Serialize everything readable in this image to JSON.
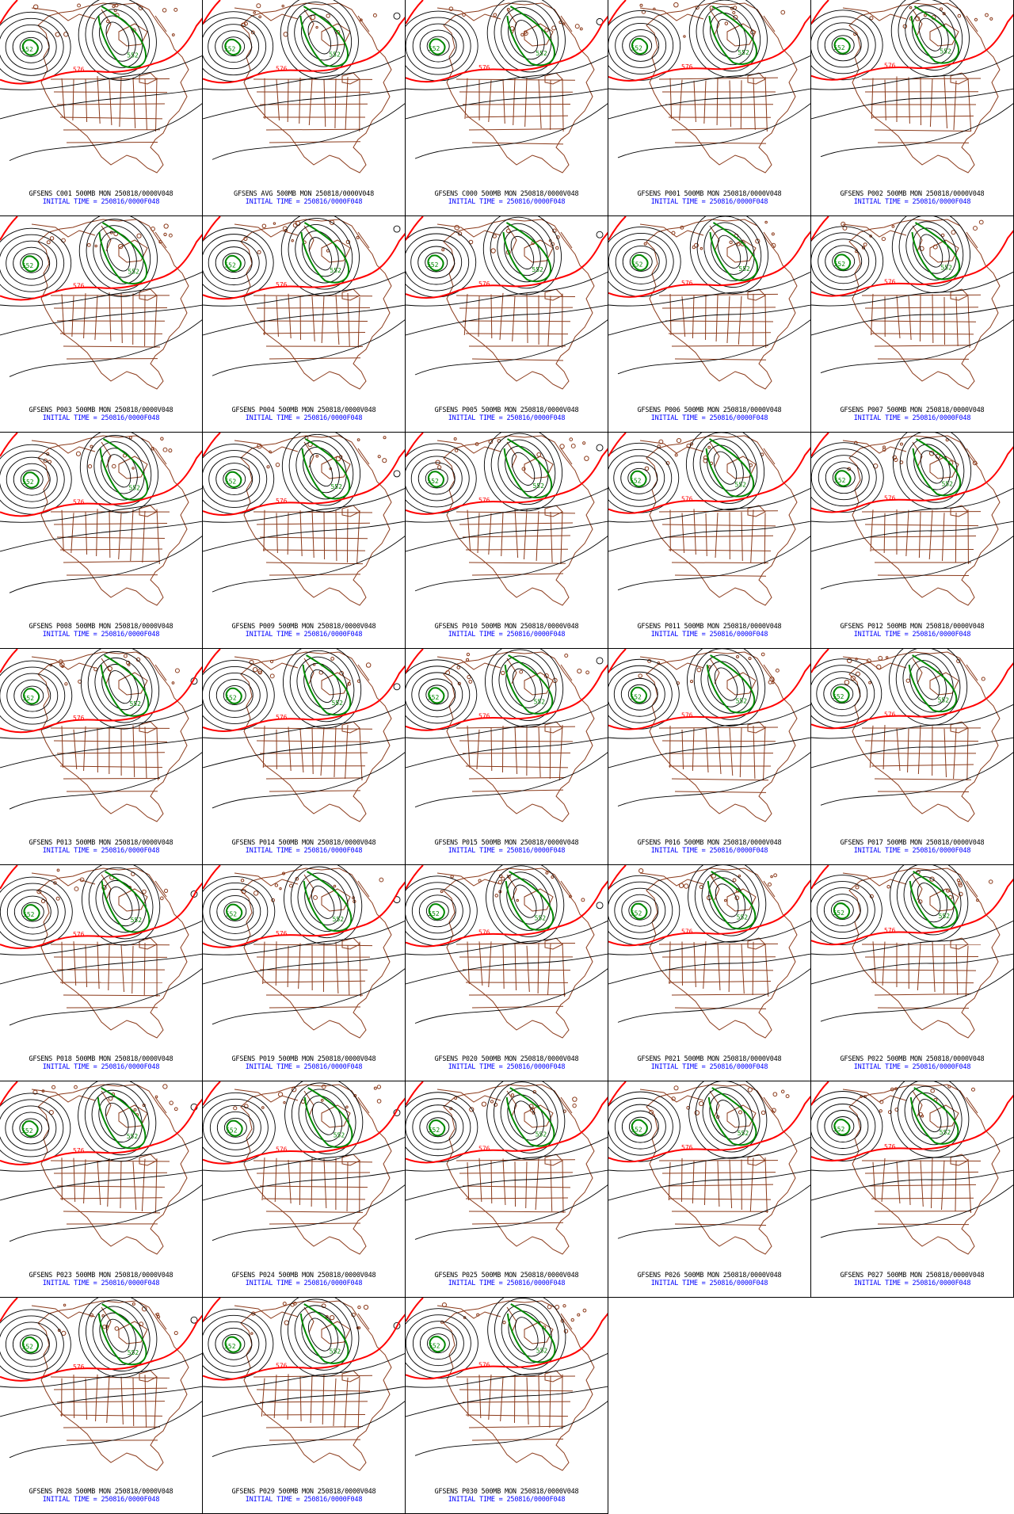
{
  "colors": {
    "contour": "#000000",
    "line_576": "#ff0000",
    "line_552": "#008800",
    "borders": "#8b3a1a",
    "caption_line1": "#000000",
    "caption_line2": "#0000ff"
  },
  "contour_labels": {
    "low_552": "552",
    "line_576": "576"
  },
  "caption_suffix": "500MB MON 250818/0000V048",
  "initial_time": "INITIAL TIME = 250816/0000F048",
  "panels": [
    {
      "member": "GFSENS C001",
      "caption": "GFSENS C001 500MB MON 250818/0000V048",
      "initial": "INITIAL TIME = 250816/0000F048"
    },
    {
      "member": "GFSENS AVG",
      "caption": "GFSENS AVG 500MB MON 250818/0000V048",
      "initial": "INITIAL TIME = 250816/0000F048"
    },
    {
      "member": "GFSENS C000",
      "caption": "GFSENS C000 500MB MON 250818/0000V048",
      "initial": "INITIAL TIME = 250816/0000F048"
    },
    {
      "member": "GFSENS P001",
      "caption": "GFSENS P001 500MB MON 250818/0000V048",
      "initial": "INITIAL TIME = 250816/0000F048"
    },
    {
      "member": "GFSENS P002",
      "caption": "GFSENS P002 500MB MON 250818/0000V048",
      "initial": "INITIAL TIME = 250816/0000F048"
    },
    {
      "member": "GFSENS P003",
      "caption": "GFSENS P003 500MB MON 250818/0000V048",
      "initial": "INITIAL TIME = 250816/0000F048"
    },
    {
      "member": "GFSENS P004",
      "caption": "GFSENS P004 500MB MON 250818/0000V048",
      "initial": "INITIAL TIME = 250816/0000F048"
    },
    {
      "member": "GFSENS P005",
      "caption": "GFSENS P005 500MB MON 250818/0000V048",
      "initial": "INITIAL TIME = 250816/0000F048"
    },
    {
      "member": "GFSENS P006",
      "caption": "GFSENS P006 500MB MON 250818/0000V048",
      "initial": "INITIAL TIME = 250816/0000F048"
    },
    {
      "member": "GFSENS P007",
      "caption": "GFSENS P007 500MB MON 250818/0000V048",
      "initial": "INITIAL TIME = 250816/0000F048"
    },
    {
      "member": "GFSENS P008",
      "caption": "GFSENS P008 500MB MON 250818/0000V048",
      "initial": "INITIAL TIME = 250816/0000F048"
    },
    {
      "member": "GFSENS P009",
      "caption": "GFSENS P009 500MB MON 250818/0000V048",
      "initial": "INITIAL TIME = 250816/0000F048"
    },
    {
      "member": "GFSENS P010",
      "caption": "GFSENS P010 500MB MON 250818/0000V048",
      "initial": "INITIAL TIME = 250816/0000F048"
    },
    {
      "member": "GFSENS P011",
      "caption": "GFSENS P011 500MB MON 250818/0000V048",
      "initial": "INITIAL TIME = 250816/0000F048"
    },
    {
      "member": "GFSENS P012",
      "caption": "GFSENS P012 500MB MON 250818/0000V048",
      "initial": "INITIAL TIME = 250816/0000F048"
    },
    {
      "member": "GFSENS P013",
      "caption": "GFSENS P013 500MB MON 250818/0000V048",
      "initial": "INITIAL TIME = 250816/0000F048"
    },
    {
      "member": "GFSENS P014",
      "caption": "GFSENS P014 500MB MON 250818/0000V048",
      "initial": "INITIAL TIME = 250816/0000F048"
    },
    {
      "member": "GFSENS P015",
      "caption": "GFSENS P015 500MB MON 250818/0000V048",
      "initial": "INITIAL TIME = 250816/0000F048"
    },
    {
      "member": "GFSENS P016",
      "caption": "GFSENS P016 500MB MON 250818/0000V048",
      "initial": "INITIAL TIME = 250816/0000F048"
    },
    {
      "member": "GFSENS P017",
      "caption": "GFSENS P017 500MB MON 250818/0000V048",
      "initial": "INITIAL TIME = 250816/0000F048"
    },
    {
      "member": "GFSENS P018",
      "caption": "GFSENS P018 500MB MON 250818/0000V048",
      "initial": "INITIAL TIME = 250816/0000F048"
    },
    {
      "member": "GFSENS P019",
      "caption": "GFSENS P019 500MB MON 250818/0000V048",
      "initial": "INITIAL TIME = 250816/0000F048"
    },
    {
      "member": "GFSENS P020",
      "caption": "GFSENS P020 500MB MON 250818/0000V048",
      "initial": "INITIAL TIME = 250816/0000F048"
    },
    {
      "member": "GFSENS P021",
      "caption": "GFSENS P021 500MB MON 250818/0000V048",
      "initial": "INITIAL TIME = 250816/0000F048"
    },
    {
      "member": "GFSENS P022",
      "caption": "GFSENS P022 500MB MON 250818/0000V048",
      "initial": "INITIAL TIME = 250816/0000F048"
    },
    {
      "member": "GFSENS P023",
      "caption": "GFSENS P023 500MB MON 250818/0000V048",
      "initial": "INITIAL TIME = 250816/0000F048"
    },
    {
      "member": "GFSENS P024",
      "caption": "GFSENS P024 500MB MON 250818/0000V048",
      "initial": "INITIAL TIME = 250816/0000F048"
    },
    {
      "member": "GFSENS P025",
      "caption": "GFSENS P025 500MB MON 250818/0000V048",
      "initial": "INITIAL TIME = 250816/0000F048"
    },
    {
      "member": "GFSENS P026",
      "caption": "GFSENS P026 500MB MON 250818/0000V048",
      "initial": "INITIAL TIME = 250816/0000F048"
    },
    {
      "member": "GFSENS P027",
      "caption": "GFSENS P027 500MB MON 250818/0000V048",
      "initial": "INITIAL TIME = 250816/0000F048"
    },
    {
      "member": "GFSENS P028",
      "caption": "GFSENS P028 500MB MON 250818/0000V048",
      "initial": "INITIAL TIME = 250816/0000F048"
    },
    {
      "member": "GFSENS P029",
      "caption": "GFSENS P029 500MB MON 250818/0000V048",
      "initial": "INITIAL TIME = 250816/0000F048"
    },
    {
      "member": "GFSENS P030",
      "caption": "GFSENS P030 500MB MON 250818/0000V048",
      "initial": "INITIAL TIME = 250816/0000F048"
    }
  ]
}
